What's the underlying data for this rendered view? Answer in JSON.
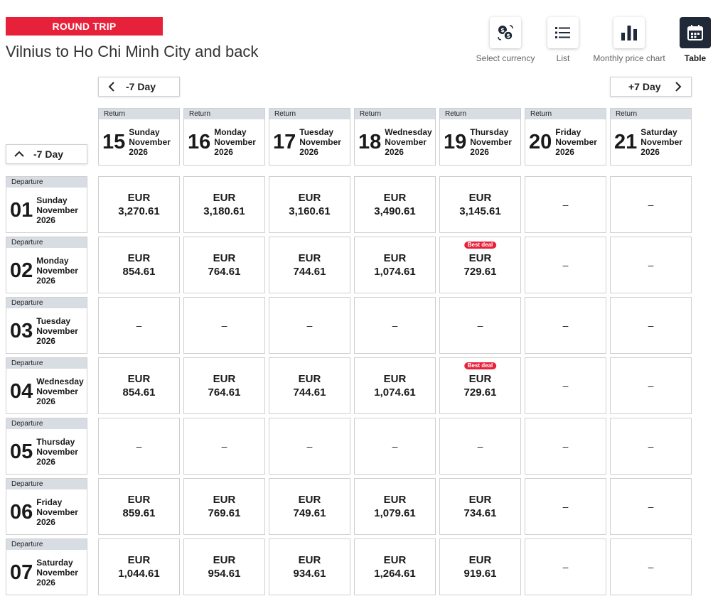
{
  "header": {
    "trip_type": "ROUND TRIP",
    "route": "Vilnius to Ho Chi Minh City and back"
  },
  "views": [
    {
      "label": "Select currency",
      "icon": "currency-exchange-icon"
    },
    {
      "label": "List",
      "icon": "list-icon"
    },
    {
      "label": "Monthly price chart",
      "icon": "bar-chart-icon"
    },
    {
      "label": "Table",
      "icon": "calendar-icon",
      "active": true
    }
  ],
  "nav": {
    "prev_return": "-7 Day",
    "next_return": "+7 Day",
    "prev_departure": "-7 Day"
  },
  "labels": {
    "return_tag": "Return",
    "departure_tag": "Departure",
    "best_deal": "Best deal",
    "currency": "EUR",
    "empty": "–"
  },
  "accent_color": "#e8213a",
  "return_dates": [
    {
      "day": "15",
      "weekday": "Sunday",
      "month": "November",
      "year": "2026"
    },
    {
      "day": "16",
      "weekday": "Monday",
      "month": "November",
      "year": "2026"
    },
    {
      "day": "17",
      "weekday": "Tuesday",
      "month": "November",
      "year": "2026"
    },
    {
      "day": "18",
      "weekday": "Wednesday",
      "month": "November",
      "year": "2026"
    },
    {
      "day": "19",
      "weekday": "Thursday",
      "month": "November",
      "year": "2026"
    },
    {
      "day": "20",
      "weekday": "Friday",
      "month": "November",
      "year": "2026"
    },
    {
      "day": "21",
      "weekday": "Saturday",
      "month": "November",
      "year": "2026"
    }
  ],
  "departures": [
    {
      "day": "01",
      "weekday": "Sunday",
      "month": "November",
      "year": "2026",
      "prices": [
        "3,270.61",
        "3,180.61",
        "3,160.61",
        "3,490.61",
        "3,145.61",
        null,
        null
      ],
      "best": []
    },
    {
      "day": "02",
      "weekday": "Monday",
      "month": "November",
      "year": "2026",
      "prices": [
        "854.61",
        "764.61",
        "744.61",
        "1,074.61",
        "729.61",
        null,
        null
      ],
      "best": [
        4
      ]
    },
    {
      "day": "03",
      "weekday": "Tuesday",
      "month": "November",
      "year": "2026",
      "prices": [
        null,
        null,
        null,
        null,
        null,
        null,
        null
      ],
      "best": []
    },
    {
      "day": "04",
      "weekday": "Wednesday",
      "month": "November",
      "year": "2026",
      "prices": [
        "854.61",
        "764.61",
        "744.61",
        "1,074.61",
        "729.61",
        null,
        null
      ],
      "best": [
        4
      ]
    },
    {
      "day": "05",
      "weekday": "Thursday",
      "month": "November",
      "year": "2026",
      "prices": [
        null,
        null,
        null,
        null,
        null,
        null,
        null
      ],
      "best": []
    },
    {
      "day": "06",
      "weekday": "Friday",
      "month": "November",
      "year": "2026",
      "prices": [
        "859.61",
        "769.61",
        "749.61",
        "1,079.61",
        "734.61",
        null,
        null
      ],
      "best": []
    },
    {
      "day": "07",
      "weekday": "Saturday",
      "month": "November",
      "year": "2026",
      "prices": [
        "1,044.61",
        "954.61",
        "934.61",
        "1,264.61",
        "919.61",
        null,
        null
      ],
      "best": []
    }
  ]
}
